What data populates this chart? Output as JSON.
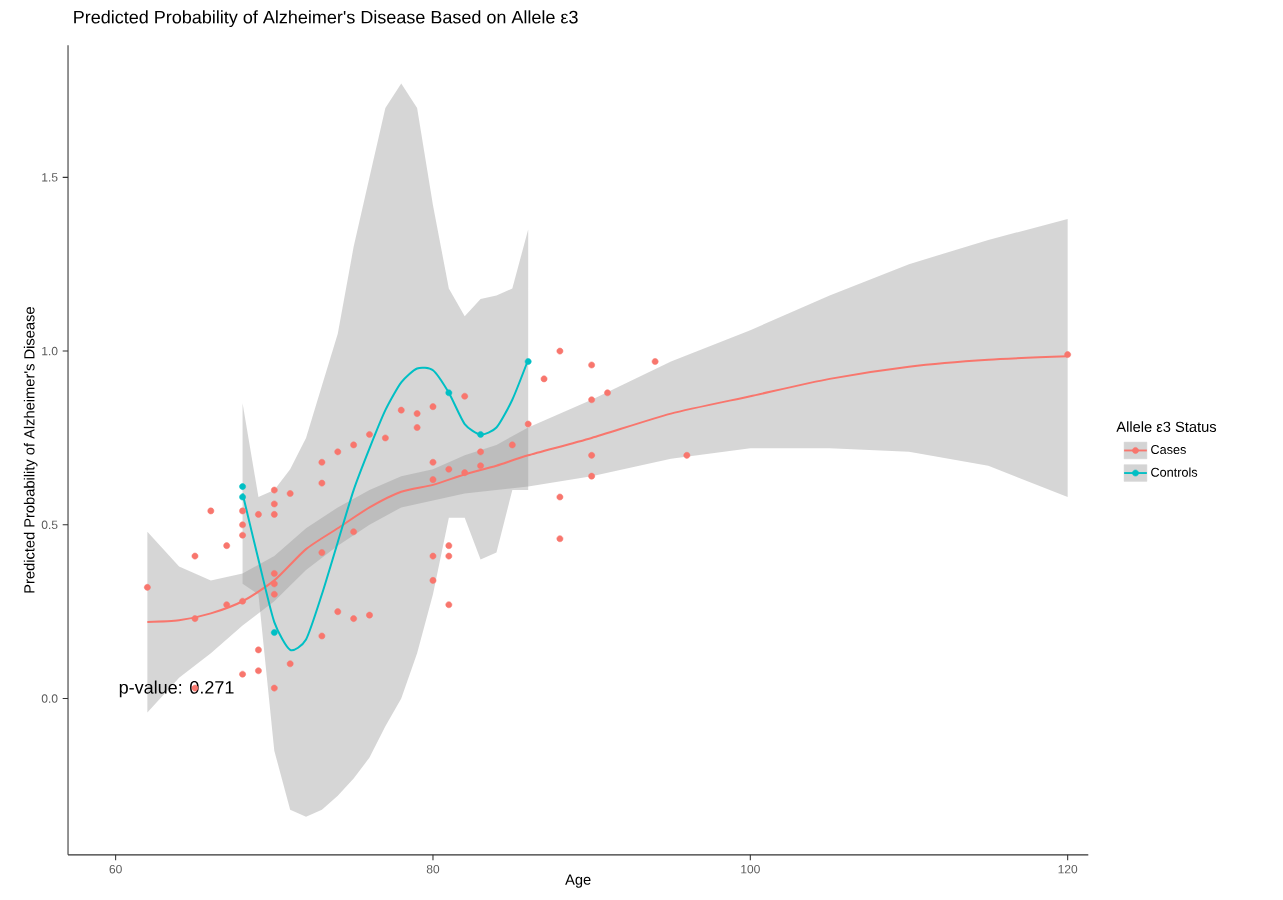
{
  "chart_data": {
    "type": "scatter",
    "title": "Predicted Probability of Alzheimer's Disease Based on Allele ε3",
    "xlabel": "Age",
    "ylabel": "Predicted Probability of Alzheimer's Disease",
    "legend_title": "Allele ε3 Status",
    "annotations": [
      "p-value: 0.271"
    ],
    "xlim": [
      57,
      121.3
    ],
    "ylim": [
      -0.45,
      1.88
    ],
    "xticks": [
      60,
      80,
      100,
      120
    ],
    "yticks": [
      {
        "value": 0,
        "label": "0.0"
      },
      {
        "value": 0.5,
        "label": "0.5"
      },
      {
        "value": 1,
        "label": "1.0"
      },
      {
        "value": 1.5,
        "label": "1.5"
      }
    ],
    "grid": false,
    "legend": "right",
    "series": [
      {
        "type": "scatter",
        "name": "Cases",
        "color": "#f8766d",
        "marker": "circle",
        "x": [
          62,
          65,
          65,
          65,
          66,
          67,
          67,
          68,
          68,
          68,
          68,
          68,
          69,
          69,
          69,
          70,
          70,
          70,
          70,
          70,
          70,
          70,
          71,
          71,
          73,
          73,
          73,
          73,
          74,
          74,
          75,
          75,
          75,
          76,
          76,
          77,
          78,
          79,
          79,
          80,
          80,
          80,
          80,
          80,
          81,
          81,
          81,
          81,
          82,
          82,
          83,
          83,
          85,
          86,
          87,
          88,
          88,
          88,
          90,
          90,
          90,
          90,
          91,
          94,
          96,
          120
        ],
        "values": [
          0.32,
          0.41,
          0.23,
          0.03,
          0.54,
          0.44,
          0.27,
          0.54,
          0.5,
          0.47,
          0.28,
          0.07,
          0.53,
          0.14,
          0.08,
          0.6,
          0.56,
          0.53,
          0.36,
          0.33,
          0.3,
          0.03,
          0.59,
          0.1,
          0.68,
          0.62,
          0.42,
          0.18,
          0.71,
          0.25,
          0.73,
          0.48,
          0.23,
          0.76,
          0.24,
          0.75,
          0.83,
          0.82,
          0.78,
          0.84,
          0.68,
          0.63,
          0.41,
          0.34,
          0.66,
          0.44,
          0.41,
          0.27,
          0.87,
          0.65,
          0.71,
          0.67,
          0.73,
          0.79,
          0.92,
          1.0,
          0.58,
          0.46,
          0.96,
          0.86,
          0.7,
          0.64,
          0.88,
          0.97,
          0.7,
          0.99
        ]
      },
      {
        "type": "scatter",
        "name": "Controls",
        "color": "#00bfc4",
        "marker": "circle",
        "x": [
          68,
          68,
          70,
          81,
          83,
          86
        ],
        "values": [
          0.61,
          0.58,
          0.19,
          0.88,
          0.76,
          0.97
        ]
      },
      {
        "type": "line",
        "color": "#f8766d",
        "marker": "none",
        "x": [
          62,
          64,
          66,
          68,
          70,
          72,
          74,
          76,
          78,
          80,
          82,
          84,
          86,
          90,
          95,
          100,
          105,
          110,
          115,
          120
        ],
        "values": [
          0.22,
          0.225,
          0.245,
          0.28,
          0.34,
          0.43,
          0.49,
          0.55,
          0.595,
          0.615,
          0.645,
          0.67,
          0.7,
          0.75,
          0.82,
          0.87,
          0.92,
          0.955,
          0.975,
          0.985
        ],
        "lower": [
          -0.04,
          0.06,
          0.13,
          0.21,
          0.28,
          0.37,
          0.44,
          0.5,
          0.55,
          0.57,
          0.59,
          0.6,
          0.61,
          0.64,
          0.69,
          0.72,
          0.72,
          0.71,
          0.67,
          0.58
        ],
        "upper": [
          0.48,
          0.38,
          0.34,
          0.36,
          0.41,
          0.49,
          0.55,
          0.6,
          0.64,
          0.66,
          0.7,
          0.73,
          0.78,
          0.86,
          0.97,
          1.06,
          1.16,
          1.25,
          1.32,
          1.38
        ]
      },
      {
        "type": "line",
        "color": "#00bfc4",
        "marker": "none",
        "x": [
          68,
          69,
          70,
          71,
          72,
          73,
          74,
          75,
          76,
          77,
          78,
          79,
          80,
          81,
          82,
          83,
          84,
          85,
          86
        ],
        "values": [
          0.59,
          0.4,
          0.22,
          0.14,
          0.17,
          0.3,
          0.45,
          0.6,
          0.72,
          0.83,
          0.91,
          0.95,
          0.945,
          0.88,
          0.79,
          0.76,
          0.78,
          0.86,
          0.975
        ],
        "lower": [
          0.33,
          0.3,
          -0.15,
          -0.32,
          -0.34,
          -0.32,
          -0.28,
          -0.23,
          -0.17,
          -0.08,
          0.0,
          0.13,
          0.3,
          0.52,
          0.52,
          0.4,
          0.42,
          0.6,
          0.6
        ],
        "upper": [
          0.85,
          0.58,
          0.6,
          0.66,
          0.75,
          0.9,
          1.05,
          1.3,
          1.5,
          1.7,
          1.77,
          1.7,
          1.42,
          1.18,
          1.1,
          1.15,
          1.16,
          1.18,
          1.35
        ]
      }
    ]
  }
}
